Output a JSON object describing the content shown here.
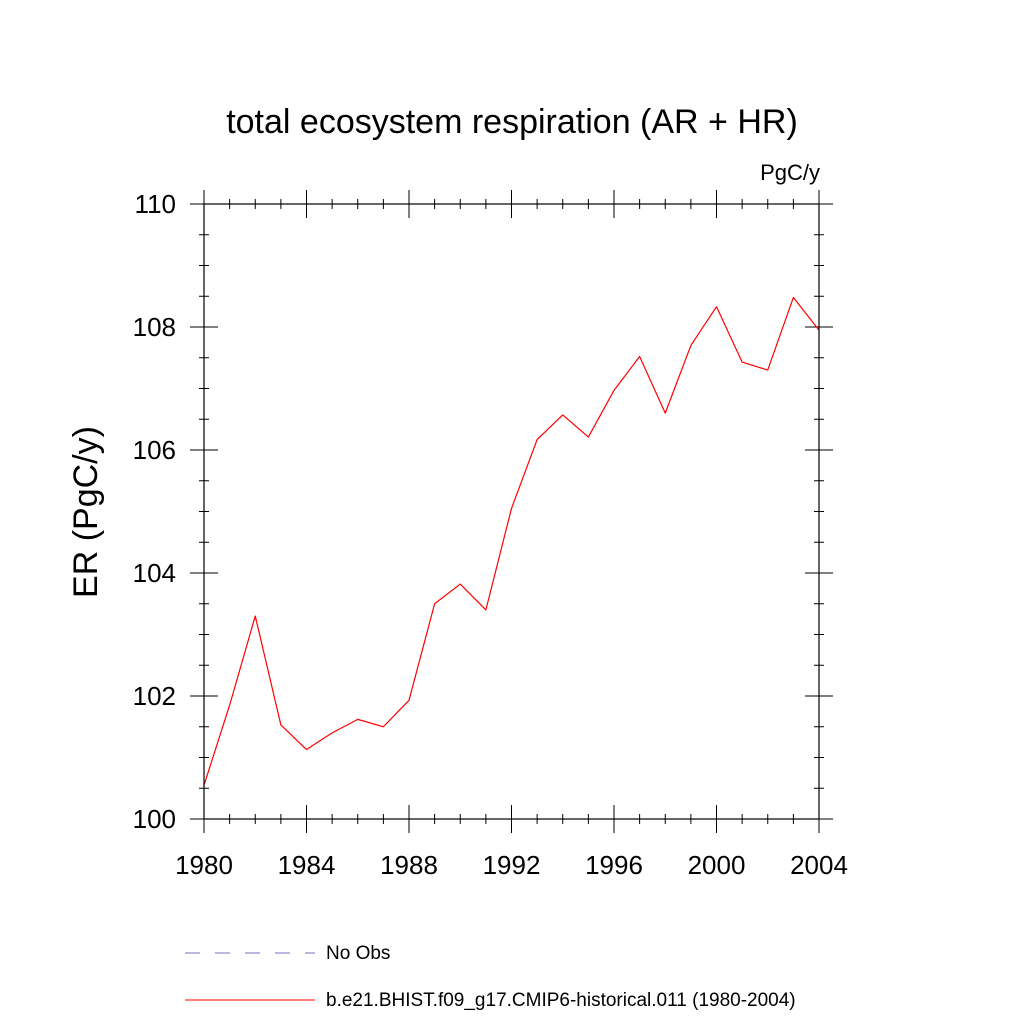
{
  "chart_data": {
    "type": "line",
    "title": "total ecosystem respiration (AR + HR)",
    "units": "PgC/y",
    "ylabel": "ER  (PgC/y)",
    "xlabel": "",
    "xlim": [
      1980,
      2004
    ],
    "ylim": [
      100,
      110
    ],
    "x_major_ticks": [
      1980,
      1984,
      1988,
      1992,
      1996,
      2000,
      2004
    ],
    "x_tick_labels": [
      "1980",
      "1984",
      "1988",
      "1992",
      "1996",
      "2000",
      "2004"
    ],
    "x_minor_step": 1,
    "y_major_ticks": [
      100,
      102,
      104,
      106,
      108,
      110
    ],
    "y_tick_labels": [
      "100",
      "102",
      "104",
      "106",
      "108",
      "110"
    ],
    "y_minor_step": 0.5,
    "grid": false,
    "legend_placement": "bottom",
    "series": [
      {
        "name": "b.e21.BHIST.f09_g17.CMIP6-historical.011 (1980-2004)",
        "color": "#ff0000",
        "style": "solid",
        "x": [
          1980,
          1981,
          1982,
          1983,
          1984,
          1985,
          1986,
          1987,
          1988,
          1989,
          1990,
          1991,
          1992,
          1993,
          1994,
          1995,
          1996,
          1997,
          1998,
          1999,
          2000,
          2001,
          2002,
          2003,
          2004
        ],
        "y": [
          100.55,
          101.85,
          103.3,
          101.53,
          101.13,
          101.4,
          101.62,
          101.5,
          101.93,
          103.5,
          103.82,
          103.4,
          105.05,
          106.17,
          106.57,
          106.21,
          106.97,
          107.52,
          106.6,
          107.7,
          108.33,
          107.43,
          107.3,
          108.48,
          107.95
        ]
      }
    ],
    "legend": [
      {
        "label": "No Obs",
        "color": "#7070c0",
        "style": "dashed"
      },
      {
        "label": "b.e21.BHIST.f09_g17.CMIP6-historical.011 (1980-2004)",
        "color": "#ff0000",
        "style": "solid"
      }
    ]
  }
}
